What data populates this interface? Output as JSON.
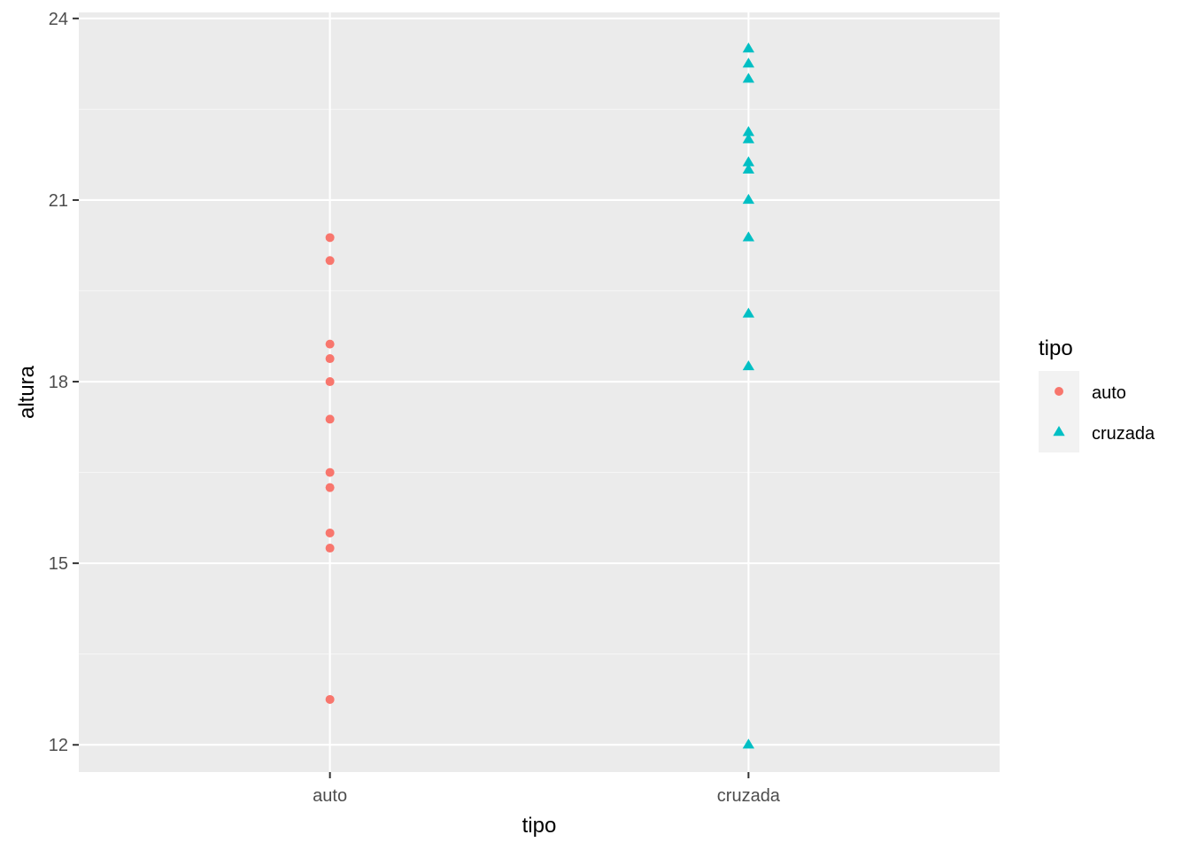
{
  "chart_data": {
    "type": "scatter",
    "title": "",
    "xlabel": "tipo",
    "ylabel": "altura",
    "categories": [
      "auto",
      "cruzada"
    ],
    "ylim": [
      11.55,
      24.1
    ],
    "yticks": [
      12,
      15,
      18,
      21,
      24
    ],
    "grid": true,
    "legend": {
      "title": "tipo",
      "position": "right",
      "entries": [
        {
          "label": "auto",
          "shape": "circle",
          "color": "#F8766D"
        },
        {
          "label": "cruzada",
          "shape": "triangle",
          "color": "#00BFC4"
        }
      ]
    },
    "series": [
      {
        "name": "auto",
        "category": "auto",
        "shape": "circle",
        "color": "#F8766D",
        "values": [
          20.38,
          20.0,
          18.62,
          18.38,
          18.0,
          17.38,
          16.5,
          16.25,
          15.5,
          15.25,
          12.75
        ]
      },
      {
        "name": "cruzada",
        "category": "cruzada",
        "shape": "triangle",
        "color": "#00BFC4",
        "values": [
          23.5,
          23.25,
          23.0,
          22.12,
          22.0,
          21.62,
          21.5,
          21.0,
          20.38,
          19.12,
          18.25,
          12.0
        ]
      }
    ]
  },
  "colors": {
    "panel_background": "#EBEBEB",
    "grid_major": "#FFFFFF",
    "grid_minor": "#F5F5F5"
  }
}
